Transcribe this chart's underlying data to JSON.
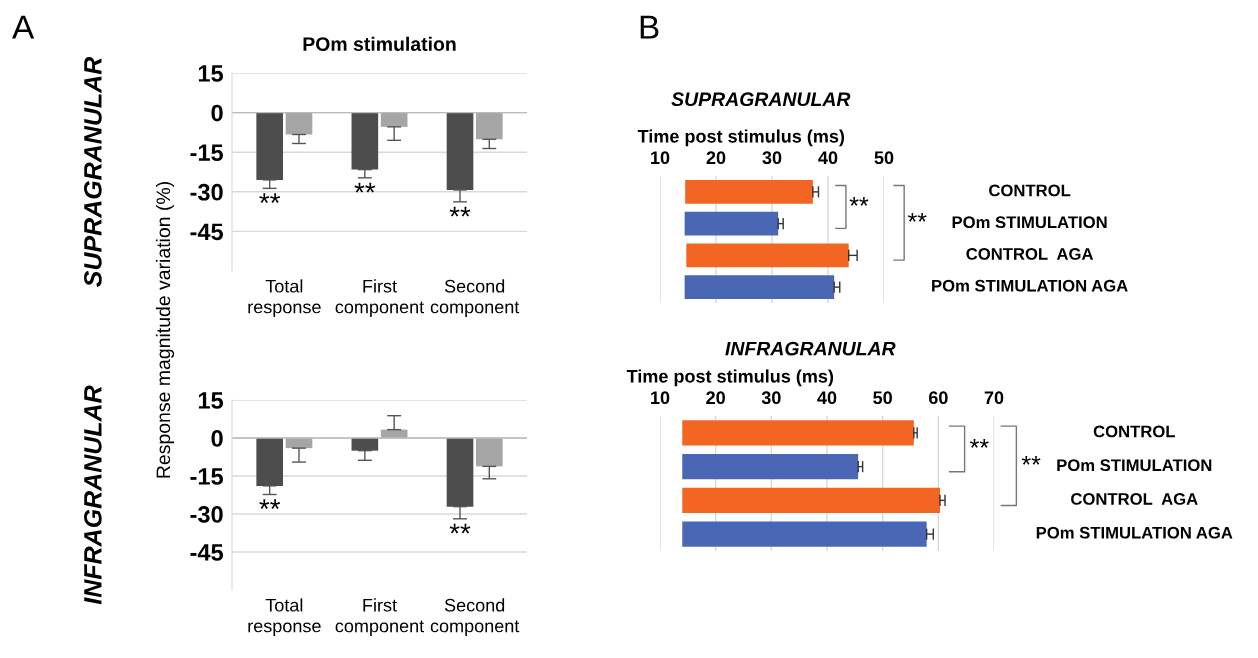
{
  "chart_data": [
    {
      "type": "bar",
      "title": "POm stimulation",
      "ylabel": "Response magnitude variation (%)",
      "categories": [
        "Total\nresponse",
        "First\ncomponent",
        "Second\ncomponent"
      ],
      "series": [
        {
          "color": "#4d4d4d",
          "values": [
            -25.5,
            -21.6,
            -29.3
          ],
          "errors": [
            [
              -28.7,
              -25.5
            ],
            [
              -24.7,
              -21.6
            ],
            [
              -33.8,
              -29.3
            ]
          ]
        },
        {
          "color": "#a6a6a6",
          "values": [
            -8.3,
            -5.4,
            -10.1
          ],
          "errors": [
            [
              -11.7,
              -8.3
            ],
            [
              -10.5,
              -5.4
            ],
            [
              -13.6,
              -10.1
            ]
          ]
        }
      ],
      "ylim": [
        -60,
        15
      ],
      "yticks": [
        15,
        0,
        -15,
        -30,
        -45
      ],
      "grid": "y",
      "annotations": [
        "A",
        "SUPRAGRANULAR",
        "**",
        "**",
        "**"
      ]
    },
    {
      "type": "bar",
      "categories": [
        "Total\nresponse",
        "First\ncomponent",
        "Second\ncomponent"
      ],
      "series": [
        {
          "color": "#4d4d4d",
          "values": [
            -18.9,
            -5.0,
            -27.1
          ],
          "errors": [
            [
              -22.3,
              -18.9
            ],
            [
              -8.8,
              -5.0
            ],
            [
              -31.9,
              -27.1
            ]
          ]
        },
        {
          "color": "#a6a6a6",
          "values": [
            -4.0,
            3.3,
            -11.2
          ],
          "errors": [
            [
              -9.5,
              -4.0
            ],
            [
              3.3,
              8.8
            ],
            [
              -16.1,
              -11.2
            ]
          ]
        }
      ],
      "ylim": [
        -60,
        15
      ],
      "yticks": [
        15,
        0,
        -15,
        -30,
        -45
      ],
      "grid": "y",
      "annotations": [
        "INFRAGRANULAR",
        "**",
        "**"
      ]
    },
    {
      "type": "bar",
      "orientation": "horizontal",
      "title": "SUPRAGRANULAR",
      "xlabel": "Time post stimulus (ms)",
      "categories": [
        "CONTROL",
        "POm STIMULATION",
        "CONTROL  AGA",
        "POm STIMULATION AGA"
      ],
      "base": [
        14.5,
        14.4,
        14.7,
        14.4
      ],
      "values": [
        22.8,
        16.7,
        29.0,
        26.7
      ],
      "colors": [
        "#f26522",
        "#4a67b5",
        "#f26522",
        "#4a67b5"
      ],
      "errors": [
        1.0,
        0.9,
        1.5,
        1.0
      ],
      "xlim": [
        10,
        50
      ],
      "xticks": [
        10,
        20,
        30,
        40,
        50
      ],
      "grid": "x",
      "annotations": [
        "B",
        "**",
        "**"
      ]
    },
    {
      "type": "bar",
      "orientation": "horizontal",
      "title": "INFRAGRANULAR",
      "xlabel": "Time post stimulus (ms)",
      "categories": [
        "CONTROL",
        "POm STIMULATION",
        "CONTROL  AGA",
        "POm STIMULATION AGA"
      ],
      "base": [
        14.0,
        14.0,
        14.0,
        14.0
      ],
      "values": [
        41.6,
        31.6,
        46.3,
        43.9
      ],
      "colors": [
        "#f26522",
        "#4a67b5",
        "#f26522",
        "#4a67b5"
      ],
      "errors": [
        0.6,
        0.8,
        0.9,
        1.2
      ],
      "xlim": [
        10,
        70
      ],
      "xticks": [
        10,
        20,
        30,
        40,
        50,
        60,
        70
      ],
      "grid": "x",
      "annotations": [
        "**",
        "**"
      ]
    }
  ]
}
